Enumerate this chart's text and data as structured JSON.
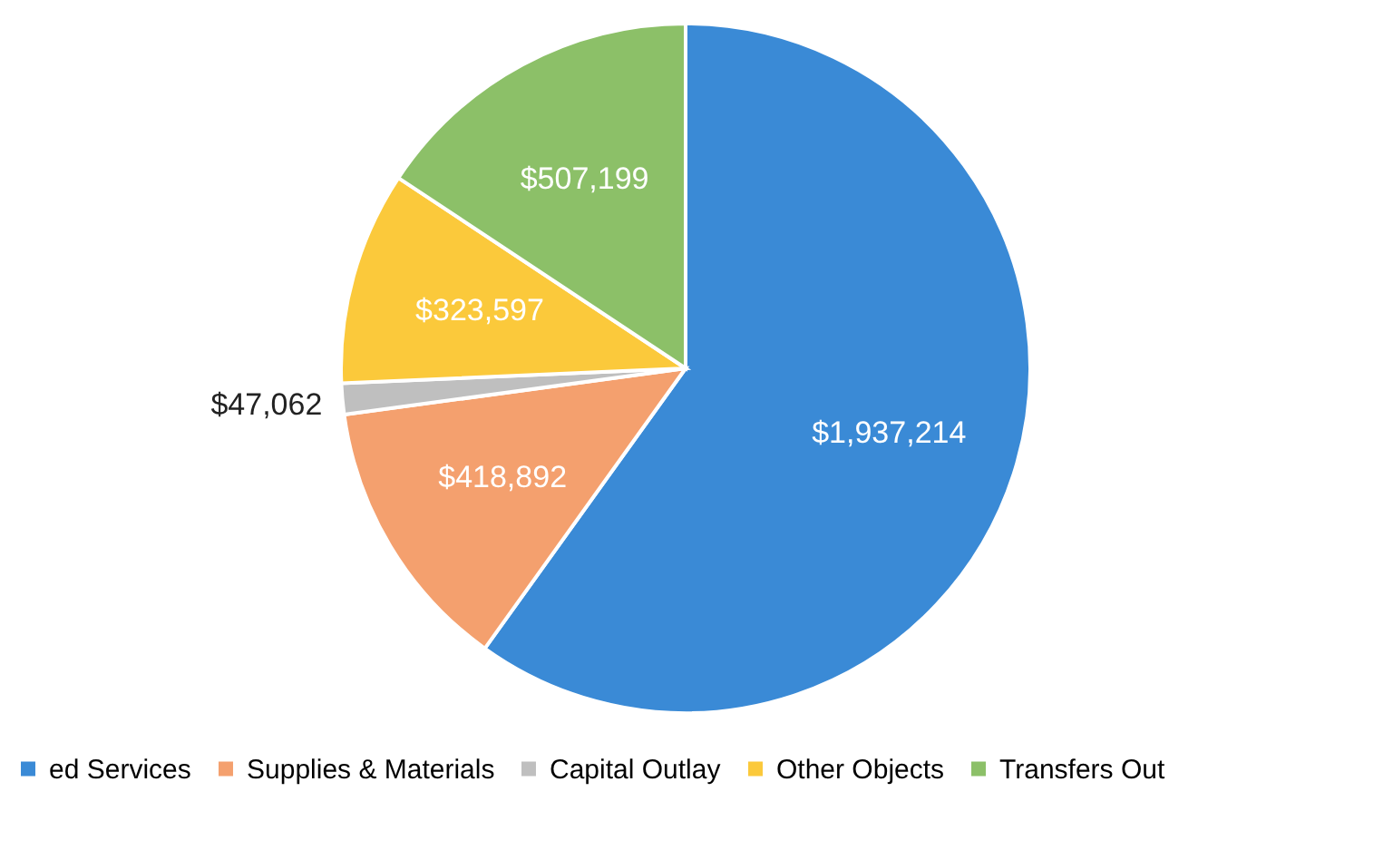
{
  "chart_data": {
    "type": "pie",
    "categories": [
      "ed Services",
      "Supplies & Materials",
      "Capital Outlay",
      "Other Objects",
      "Transfers Out"
    ],
    "values": [
      1937214,
      418892,
      47062,
      323597,
      507199
    ],
    "colors": [
      "#3a8ad6",
      "#f4a06e",
      "#bfbfbf",
      "#fbc93b",
      "#8cc068"
    ],
    "value_labels": [
      "$1,937,214",
      "$418,892",
      "$47,062",
      "$323,597",
      "$507,199"
    ],
    "legend": "bottom"
  }
}
